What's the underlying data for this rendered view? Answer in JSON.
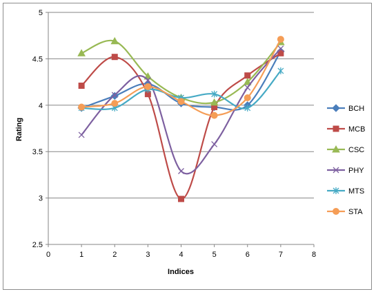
{
  "chart_data": {
    "type": "line",
    "title": "",
    "xlabel": "Indices",
    "ylabel": "Rating",
    "xlim": [
      0,
      8
    ],
    "ylim": [
      2.5,
      5
    ],
    "xticks": [
      "0",
      "1",
      "2",
      "3",
      "4",
      "5",
      "6",
      "7",
      "8"
    ],
    "yticks": [
      "2.5",
      "3",
      "3.5",
      "4",
      "4.5",
      "5"
    ],
    "grid": "horizontal",
    "legend_position": "right",
    "x": [
      1,
      2,
      3,
      4,
      5,
      6,
      7
    ],
    "series": [
      {
        "name": "BCH",
        "color": "#4a7ebb",
        "marker": "diamond",
        "values": [
          3.97,
          4.1,
          4.23,
          4.02,
          3.98,
          4.0,
          4.58
        ]
      },
      {
        "name": "MCB",
        "color": "#be4b48",
        "marker": "square",
        "values": [
          4.21,
          4.52,
          4.12,
          2.99,
          3.98,
          4.32,
          4.56
        ]
      },
      {
        "name": "CSC",
        "color": "#98b954",
        "marker": "triangle",
        "values": [
          4.56,
          4.69,
          4.31,
          4.08,
          4.03,
          4.25,
          4.68
        ]
      },
      {
        "name": "PHY",
        "color": "#7d60a0",
        "marker": "x",
        "values": [
          3.68,
          4.11,
          4.27,
          3.29,
          3.58,
          4.19,
          4.61
        ]
      },
      {
        "name": "MTS",
        "color": "#46aac5",
        "marker": "star",
        "values": [
          3.97,
          3.97,
          4.17,
          4.08,
          4.12,
          3.97,
          4.37
        ]
      },
      {
        "name": "STA",
        "color": "#f59d56",
        "marker": "circle",
        "values": [
          3.98,
          4.02,
          4.2,
          4.04,
          3.89,
          4.08,
          4.71
        ]
      }
    ]
  }
}
